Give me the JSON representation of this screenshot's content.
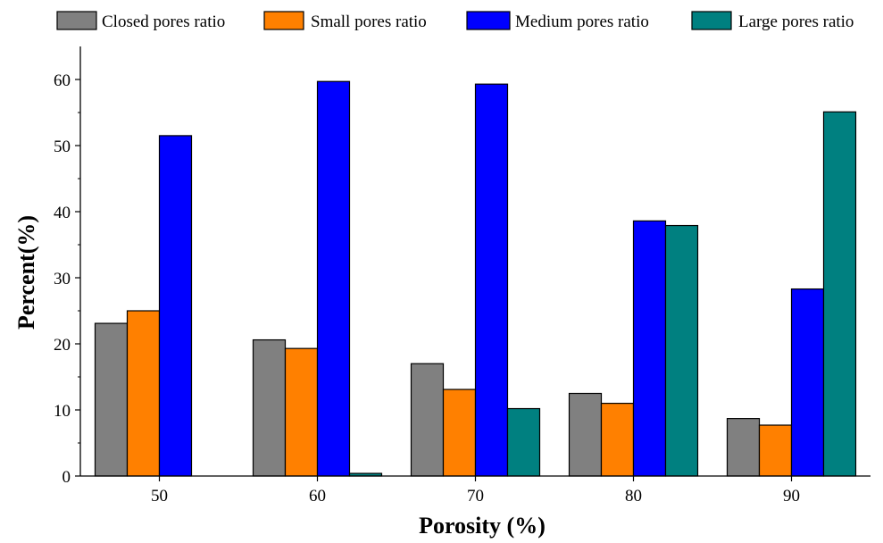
{
  "chart_data": {
    "type": "bar",
    "title": "",
    "xlabel": "Porosity (%)",
    "ylabel": "Percent(%)",
    "categories": [
      "50",
      "60",
      "70",
      "80",
      "90"
    ],
    "ylim": [
      0,
      65
    ],
    "yticks": [
      "0",
      "10",
      "20",
      "30",
      "40",
      "50",
      "60"
    ],
    "grid": false,
    "legend_position": "top",
    "series": [
      {
        "name": "Closed pores ratio",
        "color": "#808080",
        "values": [
          23.1,
          20.6,
          17.0,
          12.5,
          8.7
        ]
      },
      {
        "name": "Small pores ratio",
        "color": "#ff8000",
        "values": [
          25.0,
          19.3,
          13.1,
          11.0,
          7.7
        ]
      },
      {
        "name": "Medium pores ratio",
        "color": "#0000ff",
        "values": [
          51.5,
          59.7,
          59.3,
          38.6,
          28.3
        ]
      },
      {
        "name": "Large pores ratio",
        "color": "#008080",
        "values": [
          0,
          0.4,
          10.2,
          37.9,
          55.1
        ]
      }
    ]
  }
}
